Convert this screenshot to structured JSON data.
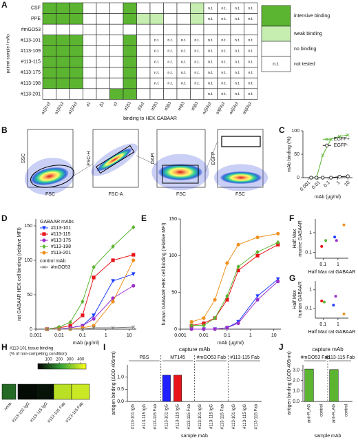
{
  "letters": [
    "A",
    "B",
    "C",
    "D",
    "E",
    "F",
    "G",
    "H",
    "I",
    "J"
  ],
  "heatmap": {
    "ylabel": "patient sample / mAb",
    "xlabel": "binding to HEK GABAAR",
    "rows": [
      "CSF",
      "PPE",
      "#mGO53",
      "#113-101",
      "#113-109",
      "#113-115",
      "#113-175",
      "#113-198",
      "#113-201"
    ],
    "columns": [
      "α1β1γ2",
      "α1β2γ2",
      "α1β3γ2",
      "α1",
      "β3",
      "γ2",
      "α1β3",
      "β3γ2",
      "α2β3",
      "α3β3",
      "α4β3",
      "α5β3",
      "α2β3γ2",
      "α3β3γ2",
      "α4β3γ2",
      "α5β3γ2"
    ],
    "cells": [
      "iiinnninnnnwtttt",
      "iiinnniwwnnwtttt",
      "nnnnnnnnnnnnnnnn",
      "iiinnnintttttttt",
      "iiinnnintttttttt",
      "iiinnnintttttttt",
      "iiinnnintttttttt",
      "iiinnnintttttttt",
      "nnnnniinnnnntttt"
    ],
    "colors": {
      "i": "#5cb531",
      "w": "#c6eeb0",
      "n": "#ffffff",
      "t": "#ffffff"
    },
    "legend": [
      {
        "key": "i",
        "label": "intensive binding"
      },
      {
        "key": "w",
        "label": "weak binding"
      },
      {
        "key": "n",
        "label": "no binding"
      },
      {
        "key": "t",
        "text": "n.t.",
        "label": "not tested"
      }
    ]
  },
  "flow": {
    "plots": [
      {
        "y": "SSC",
        "x": "FSC"
      },
      {
        "y": "FSC-H",
        "x": "FSC-A"
      },
      {
        "y": "DAPI",
        "x": "FSC"
      },
      {
        "y": "EGFP",
        "x": "FSC"
      }
    ]
  },
  "chart_data": [
    {
      "type": "line",
      "ylabel": "mAb binding (%)",
      "xlabel": "mAb (µg/ml)",
      "log_x": true,
      "xlim": [
        0.0003,
        30
      ],
      "xticks": [
        0.001,
        0.01,
        0.1,
        1,
        10
      ],
      "ylim": [
        0,
        100
      ],
      "yticks": [
        0,
        50,
        100
      ],
      "legend": "center right",
      "x": [
        0.002,
        0.007,
        0.03,
        0.2,
        1.5,
        10
      ],
      "series": [
        {
          "name": "EGFP+",
          "color": "#5cb531",
          "marker": "x",
          "values": [
            0,
            0,
            48,
            82,
            88,
            91
          ]
        },
        {
          "name": "EGFP-",
          "color": "#111111",
          "marker": "o",
          "values": [
            0,
            0,
            0,
            0,
            2,
            3
          ]
        }
      ]
    },
    {
      "type": "line",
      "ylabel": "rat GABAAR HEK cell binding (relative MFI)",
      "xlabel": "mAb (µg/ml)",
      "log_x": true,
      "xlim": [
        0.001,
        20
      ],
      "xticks": [
        0.001,
        0.01,
        0.1,
        1,
        10
      ],
      "ylim": [
        0,
        160
      ],
      "yticks": [
        0,
        50,
        100,
        150
      ],
      "legend": "upper left",
      "x": [
        0.003,
        0.01,
        0.03,
        0.1,
        0.3,
        2,
        15
      ],
      "series_groups": [
        {
          "name": "GABAAR mAbs",
          "series": [
            {
              "name": "#113-101",
              "color": "#1f3fff",
              "marker": "v",
              "values": [
                0,
                0,
                2,
                5,
                20,
                70,
                80
              ]
            },
            {
              "name": "#113-115",
              "color": "#e8141a",
              "marker": "s",
              "values": [
                0,
                2,
                5,
                20,
                75,
                100,
                108
              ]
            },
            {
              "name": "#113-175",
              "color": "#9b2fc9",
              "marker": "co",
              "values": [
                0,
                0,
                2,
                5,
                15,
                45,
                63
              ]
            },
            {
              "name": "#113-198",
              "color": "#5cb531",
              "marker": "d",
              "values": [
                0,
                3,
                10,
                40,
                90,
                120,
                148
              ]
            },
            {
              "name": "#113-201",
              "color": "#f0901e",
              "marker": "co",
              "values": [
                0,
                0,
                0,
                2,
                5,
                40,
                100
              ]
            }
          ]
        },
        {
          "name": "control mAb",
          "series": [
            {
              "name": "#mGO53",
              "color": "#777777",
              "marker": "x",
              "values": [
                0,
                0,
                0,
                0,
                2,
                2,
                3
              ]
            }
          ]
        }
      ]
    },
    {
      "type": "line",
      "ylabel": "human GABAAR HEK cell binding (relative MFI)",
      "xlabel": "mAb (µg/ml)",
      "log_x": true,
      "xlim": [
        0.001,
        20
      ],
      "xticks": [
        0.001,
        0.01,
        0.1,
        1,
        10
      ],
      "ylim": [
        0,
        150
      ],
      "yticks": [
        0,
        50,
        100,
        150
      ],
      "x": [
        0.003,
        0.01,
        0.03,
        0.1,
        0.3,
        2,
        15
      ],
      "series": [
        {
          "color": "#1f3fff",
          "marker": "v",
          "values": [
            0,
            0,
            0,
            2,
            10,
            45,
            68
          ]
        },
        {
          "color": "#e8141a",
          "marker": "s",
          "values": [
            5,
            8,
            15,
            40,
            80,
            100,
            115
          ]
        },
        {
          "color": "#9b2fc9",
          "marker": "co",
          "values": [
            0,
            0,
            0,
            2,
            8,
            40,
            65
          ]
        },
        {
          "color": "#5cb531",
          "marker": "d",
          "values": [
            5,
            5,
            15,
            45,
            85,
            105,
            118
          ]
        },
        {
          "color": "#f0901e",
          "marker": "co",
          "values": [
            10,
            15,
            40,
            90,
            115,
            125,
            130
          ]
        }
      ]
    },
    {
      "type": "scatter",
      "ylabel": [
        "Half Max",
        "murine GABAAR"
      ],
      "xlabel": "Half Max rat GABAAR",
      "log_x": true,
      "log_y": true,
      "xlim": [
        0.03,
        5
      ],
      "xticks": [
        0.1,
        1
      ],
      "ylim": [
        0.05,
        5
      ],
      "yticks": [
        0.1,
        1
      ],
      "x": [
        0.08,
        0.15,
        0.6,
        0.8,
        2.5
      ],
      "values": [
        0.2,
        0.4,
        0.6,
        0.4,
        2.5
      ],
      "colors": [
        "#e8141a",
        "#5cb531",
        "#1f3fff",
        "#9b2fc9",
        "#f0901e"
      ]
    },
    {
      "type": "scatter",
      "ylabel": [
        "Half Max",
        "human GABAAR"
      ],
      "xlabel": "Half Max rat GABAAR",
      "log_x": true,
      "log_y": true,
      "xlim": [
        0.03,
        5
      ],
      "xticks": [
        0.1,
        1
      ],
      "ylim": [
        0.03,
        3
      ],
      "yticks": [
        0.1,
        1
      ],
      "x": [
        0.08,
        0.12,
        0.5,
        0.7,
        2.5
      ],
      "values": [
        0.25,
        0.22,
        0.15,
        0.45,
        0.05
      ],
      "colors": [
        "#e8141a",
        "#5cb531",
        "#1f3fff",
        "#9b2fc9",
        "#f0901e"
      ]
    },
    {
      "type": "strip",
      "label": [
        "#113-101 tissue binding",
        "(% of non-competing condition)"
      ],
      "zlim": [
        0,
        450
      ],
      "zticks": [
        100,
        200,
        300,
        400
      ],
      "colors": [
        "#000000",
        "#3aa83a",
        "#ffff1a"
      ],
      "categories": [
        "none",
        "#113-101 IgG",
        "#113-115 IgG",
        "#113-101 Fab",
        "#113-115 Fab"
      ],
      "values": [
        140,
        15,
        25,
        370,
        390
      ]
    },
    {
      "type": "grouped_bar",
      "title": "capture mAb",
      "ylabel": "antigen binding (ΔOD 405nm)",
      "xlabel": "sample mAb",
      "ylim": [
        0,
        1.5
      ],
      "yticks": [
        {
          "value": 0,
          "label": "0.0"
        },
        0.5,
        {
          "value": 1,
          "label": "1.0"
        }
      ],
      "colors": [
        "#1f1fff",
        "#e8141a",
        "#888888"
      ],
      "groups": [
        {
          "name": "PBS",
          "categories": [
            "#113-101 IgG",
            "#113-115 IgG",
            "#113-115 Fab"
          ],
          "values": [
            0,
            0,
            0
          ]
        },
        {
          "name": "MT145",
          "categories": [
            "#113-101 IgG",
            "#113-115 IgG",
            "#113-115 Fab"
          ],
          "values": [
            1.08,
            1.08,
            0
          ]
        },
        {
          "name": "#mGO53 Fab",
          "categories": [
            "#113-101 IgG",
            "#113-115 IgG",
            "#113-115 Fab"
          ],
          "values": [
            0,
            0,
            0
          ]
        },
        {
          "name": "#113-115 Fab",
          "categories": [
            "#113-101 IgG",
            "#113-115 IgG",
            "#113-115 Fab"
          ],
          "values": [
            0,
            0,
            0
          ]
        }
      ]
    },
    {
      "type": "grouped_bar",
      "title": "capture mAb",
      "ylabel": "antigen binding (ΔOD 405nm)",
      "xlabel": "sample mAb",
      "ylim": [
        0,
        3.5
      ],
      "yticks": [
        {
          "value": 0,
          "label": "0.0"
        },
        {
          "value": 1,
          "label": "1.0"
        },
        {
          "value": 2,
          "label": "2.0"
        },
        {
          "value": 3,
          "label": "3.0"
        }
      ],
      "colors": [
        "#5cb531",
        "#5cb531"
      ],
      "groups": [
        {
          "name": "#mGO53 Fab",
          "categories": [
            "anti-FLAG",
            "control"
          ],
          "values": [
            3.1,
            0
          ]
        },
        {
          "name": "#113-115 Fab",
          "categories": [
            "anti-FLAG",
            "control"
          ],
          "values": [
            3.05,
            0
          ]
        }
      ]
    }
  ]
}
